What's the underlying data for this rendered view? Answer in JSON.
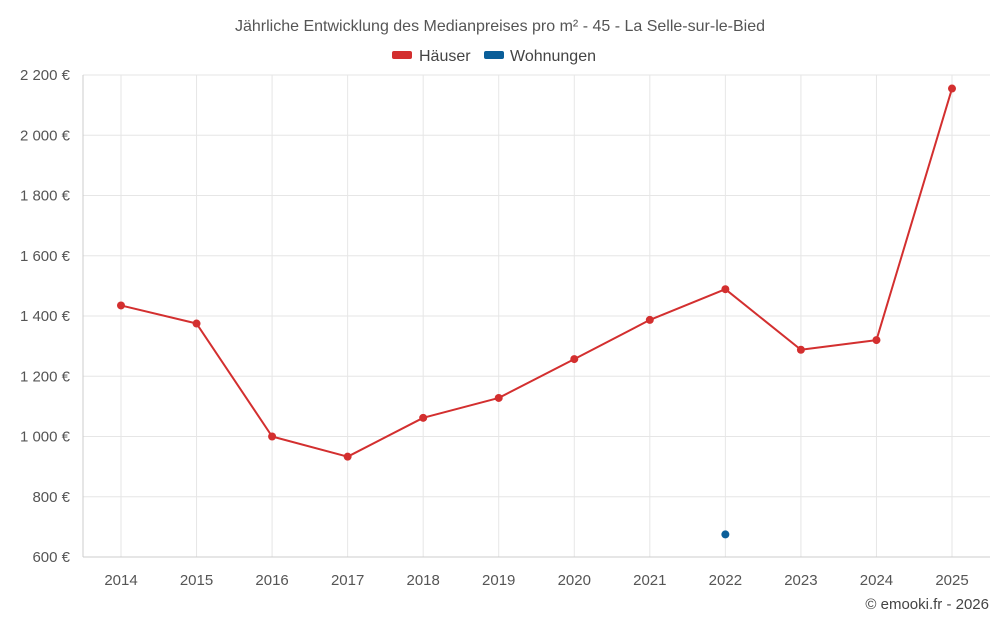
{
  "chart_data": {
    "type": "line",
    "title": "Jährliche Entwicklung des Medianpreises pro m² - 45 - La Selle-sur-le-Bied",
    "categories": [
      "2014",
      "2015",
      "2016",
      "2017",
      "2018",
      "2019",
      "2020",
      "2021",
      "2022",
      "2023",
      "2024",
      "2025"
    ],
    "series": [
      {
        "name": "Häuser",
        "color": "#d32f2f",
        "values": [
          1435,
          1375,
          1000,
          933,
          1062,
          1128,
          1257,
          1387,
          1489,
          1288,
          1320,
          2155
        ]
      },
      {
        "name": "Wohnungen",
        "color": "#0a5e99",
        "values": [
          null,
          null,
          null,
          null,
          null,
          null,
          null,
          null,
          675,
          null,
          null,
          null
        ]
      }
    ],
    "ylim": [
      600,
      2200
    ],
    "yticks": [
      600,
      800,
      1000,
      1200,
      1400,
      1600,
      1800,
      2000,
      2200
    ],
    "ytick_labels": [
      "600 €",
      "800 €",
      "1 000 €",
      "1 200 €",
      "1 400 €",
      "1 600 €",
      "1 800 €",
      "2 000 €",
      "2 200 €"
    ],
    "xlabel": "",
    "ylabel": "",
    "legend": "top-center",
    "grid": true
  },
  "credit": "© emooki.fr - 2026"
}
